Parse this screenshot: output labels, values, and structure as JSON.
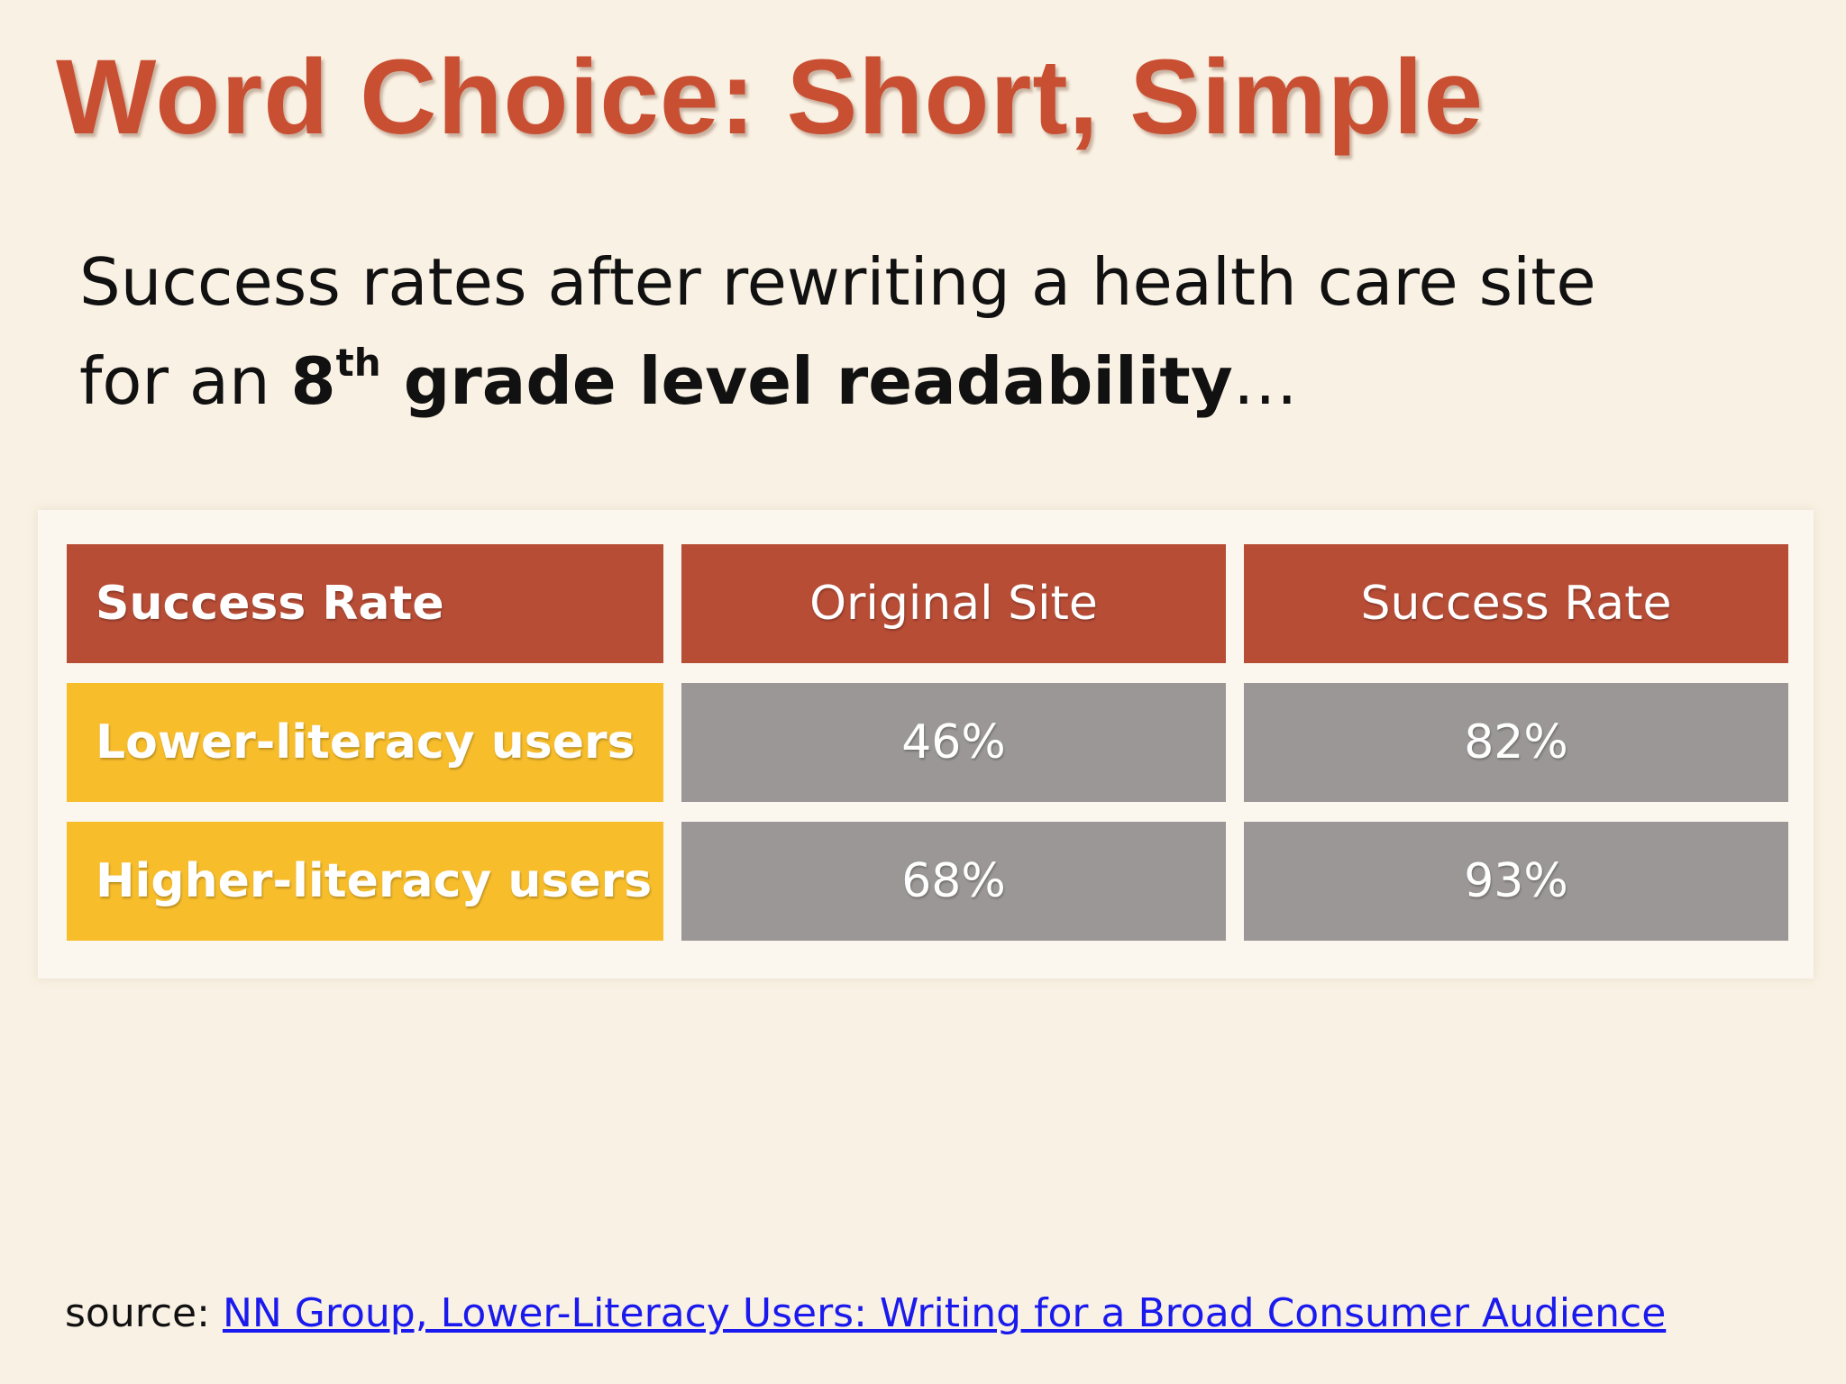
{
  "slide": {
    "title": "Word Choice: Short, Simple",
    "subtitle": {
      "line1": "Success rates after rewriting a health care site",
      "line2_prefix": "for an ",
      "grade_number": "8",
      "grade_suffix": "th",
      "bold_text": " grade level readability",
      "ellipsis": "…"
    }
  },
  "table": {
    "headers": [
      "Success Rate",
      "Original Site",
      "Success Rate"
    ],
    "rows": [
      {
        "label": "Lower-literacy users",
        "original": "46%",
        "rewritten": "82%"
      },
      {
        "label": "Higher-literacy users",
        "original": "68%",
        "rewritten": "93%"
      }
    ]
  },
  "source": {
    "prefix": "source: ",
    "link_text": "NN Group, Lower-Literacy Users: Writing for a Broad Consumer Audience"
  },
  "colors": {
    "title": "#c94f33",
    "header_bg": "#b84d36",
    "row_label_bg": "#f7bd2b",
    "value_bg": "#9b9797",
    "background": "#f9f1e3",
    "link": "#1a1aee"
  }
}
